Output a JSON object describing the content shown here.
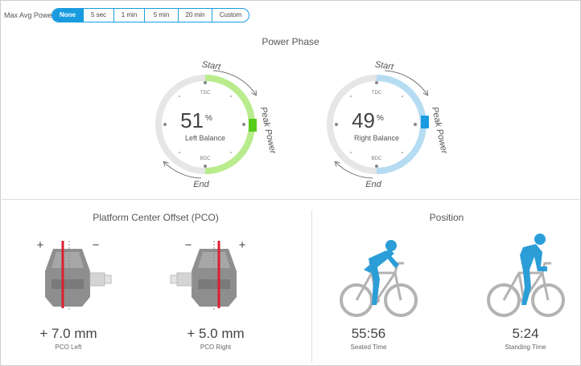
{
  "toolbar": {
    "label": "Max Avg Power",
    "options": [
      "None",
      "5 sec",
      "1 min",
      "5 min",
      "20 min",
      "Custom"
    ],
    "selected": "None"
  },
  "power_phase": {
    "title": "Power Phase",
    "left": {
      "percent": "51",
      "percent_sign": "%",
      "label": "Left Balance",
      "tdc": "TDC",
      "bdc": "BDC",
      "start": "Start",
      "end": "End",
      "peak": "Peak Power",
      "color": "#b8ec8c",
      "peak_color": "#55cc1a"
    },
    "right": {
      "percent": "49",
      "percent_sign": "%",
      "label": "Right Balance",
      "tdc": "TDC",
      "bdc": "BDC",
      "start": "Start",
      "end": "End",
      "peak": "Peak Power",
      "color": "#b5dcf2",
      "peak_color": "#1a9be0"
    }
  },
  "pco": {
    "title": "Platform Center Offset (PCO)",
    "left": {
      "value": "+ 7.0 mm",
      "label": "PCO Left",
      "plus": "+",
      "minus": "−"
    },
    "right": {
      "value": "+ 5.0 mm",
      "label": "PCO Right",
      "plus": "+",
      "minus": "−"
    }
  },
  "position": {
    "title": "Position",
    "seated": {
      "value": "55:56",
      "label": "Seated Time"
    },
    "standing": {
      "value": "5:24",
      "label": "Standing Time"
    },
    "rider_color": "#2b9ed8",
    "bike_color": "#b3b3b3"
  }
}
